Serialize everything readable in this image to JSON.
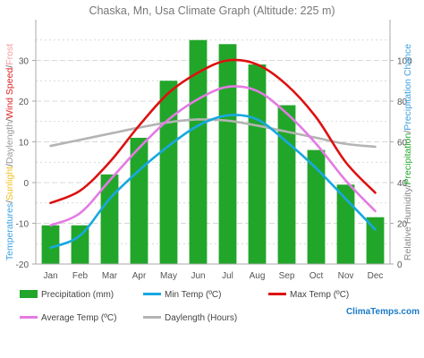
{
  "title": "Chaska, Mn, Usa Climate Graph (Altitude: 225 m)",
  "watermark": "ClimaTemps.com",
  "colors": {
    "precipitation": "#22a62a",
    "min_temp": "#18a8e0",
    "max_temp": "#dd1111",
    "avg_temp": "#e47ae4",
    "daylength": "#b4b4b4",
    "axis": "#aaaaaa",
    "grid": "#cccccc",
    "tick_text": "#555555",
    "watermark": "#1a7ac8"
  },
  "left_axis_label_parts": [
    {
      "text": "Temperatures",
      "color": "#3aa0e0"
    },
    {
      "text": "/",
      "color": "#666666"
    },
    {
      "text": "Sunlight",
      "color": "#f0c020"
    },
    {
      "text": "/",
      "color": "#666666"
    },
    {
      "text": "Daylength",
      "color": "#999999"
    },
    {
      "text": "/",
      "color": "#666666"
    },
    {
      "text": "Wind Speed",
      "color": "#dd2222"
    },
    {
      "text": "/",
      "color": "#666666"
    },
    {
      "text": "Frost",
      "color": "#f0a0a0"
    }
  ],
  "right_axis_label_parts": [
    {
      "text": "Relative Humidity",
      "color": "#888888"
    },
    {
      "text": "/",
      "color": "#666666"
    },
    {
      "text": "Precipitation",
      "color": "#22a62a"
    },
    {
      "text": "/",
      "color": "#666666"
    },
    {
      "text": "Precipitation Chance",
      "color": "#3aa0e0"
    }
  ],
  "chart_data": {
    "type": "bar",
    "categories": [
      "Jan",
      "Feb",
      "Mar",
      "Apr",
      "May",
      "Jun",
      "Jul",
      "Aug",
      "Sep",
      "Oct",
      "Nov",
      "Dec"
    ],
    "left_axis": {
      "ylim": [
        -20,
        40
      ],
      "ticks": [
        -20,
        -10,
        0,
        10,
        20,
        30
      ]
    },
    "right_axis": {
      "ylim": [
        0,
        120
      ],
      "ticks": [
        0,
        20,
        40,
        60,
        80,
        100
      ]
    },
    "grid": true,
    "legend_position": "bottom",
    "series": [
      {
        "name": "Precipitation (mm)",
        "kind": "bar",
        "axis": "right",
        "color_key": "precipitation",
        "values": [
          19,
          19,
          44,
          62,
          90,
          110,
          108,
          98,
          78,
          56,
          39,
          23
        ]
      },
      {
        "name": "Min Temp (ºC)",
        "kind": "line",
        "axis": "left",
        "color_key": "min_temp",
        "values": [
          -16,
          -13,
          -4,
          3,
          9,
          14,
          16.5,
          15.5,
          10,
          3.5,
          -4,
          -11.5
        ]
      },
      {
        "name": "Max Temp (ºC)",
        "kind": "line",
        "axis": "left",
        "color_key": "max_temp",
        "values": [
          -5,
          -2,
          5,
          14,
          22,
          27,
          30,
          29,
          24,
          16,
          5,
          -2.5
        ]
      },
      {
        "name": "Average Temp (ºC)",
        "kind": "line",
        "axis": "left",
        "color_key": "avg_temp",
        "values": [
          -10.5,
          -7.5,
          0.5,
          8.5,
          15.5,
          20.5,
          23.5,
          22.5,
          17,
          9.5,
          0.5,
          -7
        ]
      },
      {
        "name": "Daylength (Hours)",
        "kind": "line",
        "axis": "left",
        "color_key": "daylength",
        "values": [
          9,
          10.5,
          12,
          13.5,
          14.8,
          15.5,
          15.2,
          14,
          12.5,
          11,
          9.5,
          8.8
        ]
      }
    ]
  }
}
